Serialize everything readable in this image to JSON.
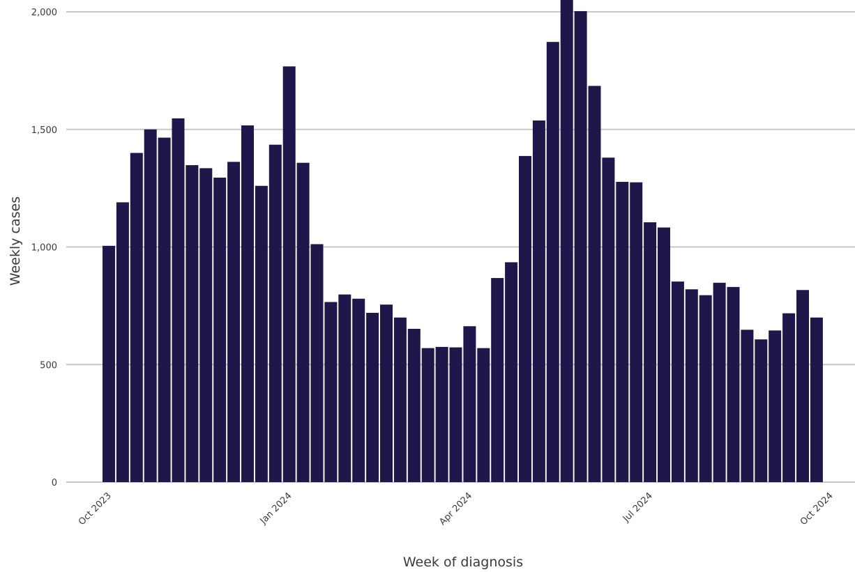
{
  "chart_data": {
    "type": "bar",
    "title": "",
    "xlabel": "Week of diagnosis",
    "ylabel": "Weekly cases",
    "ylim": [
      0,
      2000
    ],
    "yticks": [
      0,
      500,
      1000,
      1500,
      2000
    ],
    "ytick_labels": [
      "0",
      "500",
      "1,000",
      "1,500",
      "2,000"
    ],
    "xticks": [
      {
        "label": "Oct 2023",
        "bar_index": 0
      },
      {
        "label": "Jan 2024",
        "bar_index": 13
      },
      {
        "label": "Apr 2024",
        "bar_index": 26
      },
      {
        "label": "Jul 2024",
        "bar_index": 39
      },
      {
        "label": "Oct 2024",
        "bar_index": 52
      }
    ],
    "grid": true,
    "bar_color": "#1f1749",
    "grid_color": "#c8c8c8",
    "series": [
      {
        "values": [
          1005,
          1190,
          1400,
          1500,
          1465,
          1547,
          1348,
          1335,
          1295,
          1362,
          1517,
          1260,
          1435,
          1768,
          1358,
          1012,
          766,
          798,
          780,
          720,
          755,
          700,
          652,
          570,
          575,
          573,
          663,
          570,
          868,
          935,
          1387,
          1538,
          1872,
          2060,
          2003,
          1685,
          1380,
          1277,
          1275,
          1105,
          1083,
          853,
          820,
          795,
          848,
          830,
          648,
          607,
          645,
          718,
          817,
          700
        ]
      }
    ]
  }
}
